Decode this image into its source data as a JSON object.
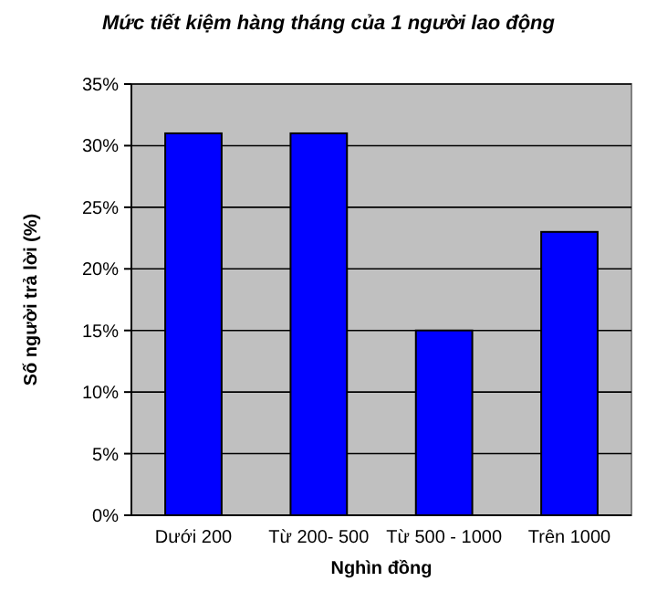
{
  "chart_data": {
    "type": "bar",
    "title": "Mức tiết kiệm hàng tháng của 1 người lao động",
    "xlabel": "Nghìn đồng",
    "ylabel": "Số người trả lời (%)",
    "categories": [
      "Dưới 200",
      "Từ 200- 500",
      "Từ 500 - 1000",
      "Trên 1000"
    ],
    "values": [
      31,
      31,
      15,
      23
    ],
    "color": "#0000ff",
    "ylim": [
      0,
      35
    ],
    "yticks": [
      {
        "value": 0,
        "label": "0%"
      },
      {
        "value": 5,
        "label": "5%"
      },
      {
        "value": 10,
        "label": "10%"
      },
      {
        "value": 15,
        "label": "15%"
      },
      {
        "value": 20,
        "label": "20%"
      },
      {
        "value": 25,
        "label": "25%"
      },
      {
        "value": 30,
        "label": "30%"
      },
      {
        "value": 35,
        "label": "35%"
      }
    ],
    "grid": "y"
  }
}
